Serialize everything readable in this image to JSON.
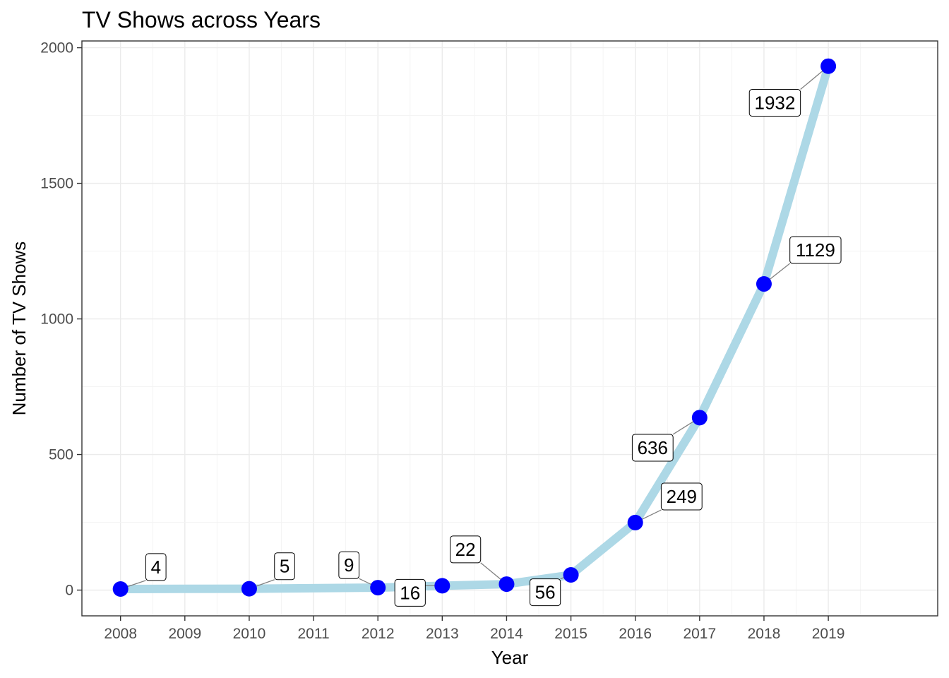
{
  "chart_data": {
    "type": "line",
    "title": "TV Shows across Years",
    "xlabel": "Year",
    "ylabel": "Number of TV Shows",
    "x_ticks": [
      2008,
      2009,
      2010,
      2011,
      2012,
      2013,
      2014,
      2015,
      2016,
      2017,
      2018,
      2019
    ],
    "y_ticks": [
      0,
      500,
      1000,
      1500,
      2000
    ],
    "xlim": [
      2007.4,
      2020.7
    ],
    "ylim": [
      -95,
      2025
    ],
    "grid": true,
    "legend": "none",
    "line_color": "#add8e6",
    "point_color": "#0000ff",
    "points": [
      {
        "x": 2008,
        "y": 4
      },
      {
        "x": 2010,
        "y": 5
      },
      {
        "x": 2012,
        "y": 9
      },
      {
        "x": 2013,
        "y": 16
      },
      {
        "x": 2014,
        "y": 22
      },
      {
        "x": 2015,
        "y": 56
      },
      {
        "x": 2016,
        "y": 249
      },
      {
        "x": 2017,
        "y": 636
      },
      {
        "x": 2018,
        "y": 1129
      },
      {
        "x": 2019,
        "y": 1932
      }
    ],
    "labels": [
      {
        "text": "4",
        "x": 2008.55,
        "y": 85
      },
      {
        "text": "5",
        "x": 2010.55,
        "y": 88
      },
      {
        "text": "9",
        "x": 2011.55,
        "y": 92
      },
      {
        "text": "16",
        "x": 2012.5,
        "y": -10
      },
      {
        "text": "22",
        "x": 2013.36,
        "y": 150
      },
      {
        "text": "56",
        "x": 2014.6,
        "y": -8
      },
      {
        "text": "249",
        "x": 2016.72,
        "y": 345
      },
      {
        "text": "636",
        "x": 2016.27,
        "y": 525
      },
      {
        "text": "1129",
        "x": 2018.8,
        "y": 1254
      },
      {
        "text": "1932",
        "x": 2018.17,
        "y": 1797
      }
    ]
  }
}
